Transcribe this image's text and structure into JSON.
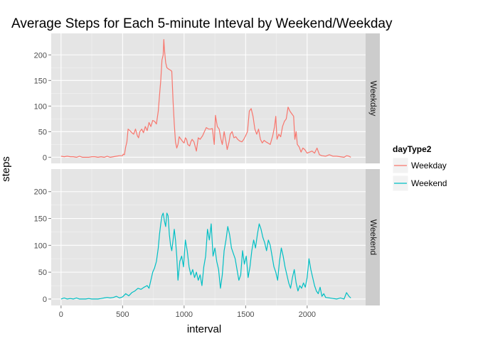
{
  "chart_data": {
    "type": "line",
    "title": "Average Steps for Each 5-minute Inteval by Weekend/Weekday",
    "xlabel": "interval",
    "ylabel": "steps",
    "xlim": [
      -80,
      2475
    ],
    "ylim": [
      -12,
      242
    ],
    "x_ticks": [
      0,
      500,
      1000,
      1500,
      2000
    ],
    "y_ticks": [
      0,
      50,
      100,
      150,
      200
    ],
    "grid": true,
    "legend": {
      "title": "dayType2",
      "position": "right"
    },
    "facets": [
      "Weekday",
      "Weekend"
    ],
    "series": [
      {
        "name": "Weekday",
        "color": "#F8766D",
        "points": [
          [
            0,
            2
          ],
          [
            25,
            1
          ],
          [
            50,
            2
          ],
          [
            75,
            1
          ],
          [
            100,
            1
          ],
          [
            125,
            0
          ],
          [
            150,
            2
          ],
          [
            175,
            0
          ],
          [
            200,
            0
          ],
          [
            225,
            0
          ],
          [
            250,
            1
          ],
          [
            275,
            1
          ],
          [
            300,
            0
          ],
          [
            325,
            1
          ],
          [
            350,
            0
          ],
          [
            375,
            2
          ],
          [
            400,
            0
          ],
          [
            425,
            1
          ],
          [
            450,
            2
          ],
          [
            475,
            3
          ],
          [
            500,
            3
          ],
          [
            505,
            6
          ],
          [
            515,
            5
          ],
          [
            525,
            20
          ],
          [
            535,
            30
          ],
          [
            545,
            55
          ],
          [
            560,
            52
          ],
          [
            575,
            48
          ],
          [
            590,
            45
          ],
          [
            605,
            55
          ],
          [
            620,
            42
          ],
          [
            630,
            38
          ],
          [
            640,
            50
          ],
          [
            655,
            55
          ],
          [
            670,
            48
          ],
          [
            685,
            60
          ],
          [
            700,
            52
          ],
          [
            715,
            68
          ],
          [
            730,
            60
          ],
          [
            745,
            72
          ],
          [
            760,
            70
          ],
          [
            775,
            65
          ],
          [
            790,
            90
          ],
          [
            800,
            120
          ],
          [
            810,
            150
          ],
          [
            820,
            190
          ],
          [
            830,
            200
          ],
          [
            835,
            230
          ],
          [
            840,
            210
          ],
          [
            850,
            185
          ],
          [
            860,
            175
          ],
          [
            875,
            172
          ],
          [
            890,
            170
          ],
          [
            900,
            168
          ],
          [
            910,
            110
          ],
          [
            920,
            65
          ],
          [
            930,
            30
          ],
          [
            940,
            18
          ],
          [
            950,
            25
          ],
          [
            960,
            40
          ],
          [
            975,
            35
          ],
          [
            990,
            30
          ],
          [
            1000,
            28
          ],
          [
            1010,
            38
          ],
          [
            1020,
            35
          ],
          [
            1030,
            25
          ],
          [
            1045,
            22
          ],
          [
            1055,
            30
          ],
          [
            1065,
            35
          ],
          [
            1080,
            30
          ],
          [
            1100,
            12
          ],
          [
            1115,
            38
          ],
          [
            1130,
            35
          ],
          [
            1150,
            42
          ],
          [
            1165,
            50
          ],
          [
            1180,
            58
          ],
          [
            1200,
            55
          ],
          [
            1215,
            55
          ],
          [
            1230,
            56
          ],
          [
            1245,
            25
          ],
          [
            1255,
            82
          ],
          [
            1270,
            60
          ],
          [
            1285,
            55
          ],
          [
            1300,
            35
          ],
          [
            1310,
            25
          ],
          [
            1325,
            50
          ],
          [
            1340,
            30
          ],
          [
            1350,
            15
          ],
          [
            1365,
            30
          ],
          [
            1375,
            45
          ],
          [
            1390,
            50
          ],
          [
            1405,
            38
          ],
          [
            1420,
            40
          ],
          [
            1435,
            35
          ],
          [
            1450,
            32
          ],
          [
            1470,
            30
          ],
          [
            1485,
            35
          ],
          [
            1500,
            42
          ],
          [
            1515,
            50
          ],
          [
            1530,
            90
          ],
          [
            1545,
            95
          ],
          [
            1560,
            80
          ],
          [
            1575,
            55
          ],
          [
            1590,
            45
          ],
          [
            1605,
            55
          ],
          [
            1620,
            35
          ],
          [
            1635,
            28
          ],
          [
            1650,
            33
          ],
          [
            1665,
            30
          ],
          [
            1680,
            28
          ],
          [
            1700,
            25
          ],
          [
            1720,
            42
          ],
          [
            1735,
            60
          ],
          [
            1745,
            80
          ],
          [
            1755,
            35
          ],
          [
            1770,
            45
          ],
          [
            1785,
            40
          ],
          [
            1800,
            60
          ],
          [
            1815,
            70
          ],
          [
            1830,
            75
          ],
          [
            1845,
            98
          ],
          [
            1860,
            90
          ],
          [
            1875,
            85
          ],
          [
            1890,
            80
          ],
          [
            1900,
            35
          ],
          [
            1910,
            50
          ],
          [
            1920,
            25
          ],
          [
            1935,
            20
          ],
          [
            1950,
            10
          ],
          [
            1965,
            18
          ],
          [
            1980,
            15
          ],
          [
            2000,
            8
          ],
          [
            2020,
            10
          ],
          [
            2040,
            12
          ],
          [
            2060,
            8
          ],
          [
            2080,
            18
          ],
          [
            2100,
            5
          ],
          [
            2120,
            3
          ],
          [
            2150,
            2
          ],
          [
            2180,
            5
          ],
          [
            2210,
            2
          ],
          [
            2240,
            2
          ],
          [
            2270,
            1
          ],
          [
            2300,
            0
          ],
          [
            2320,
            3
          ],
          [
            2340,
            2
          ],
          [
            2355,
            0
          ]
        ]
      },
      {
        "name": "Weekend",
        "color": "#00BFC4",
        "points": [
          [
            0,
            0
          ],
          [
            25,
            2
          ],
          [
            50,
            0
          ],
          [
            75,
            1
          ],
          [
            100,
            0
          ],
          [
            125,
            2
          ],
          [
            150,
            0
          ],
          [
            175,
            0
          ],
          [
            200,
            0
          ],
          [
            225,
            1
          ],
          [
            250,
            0
          ],
          [
            275,
            0
          ],
          [
            300,
            0
          ],
          [
            325,
            1
          ],
          [
            350,
            2
          ],
          [
            375,
            3
          ],
          [
            400,
            2
          ],
          [
            425,
            3
          ],
          [
            450,
            5
          ],
          [
            475,
            2
          ],
          [
            500,
            4
          ],
          [
            525,
            10
          ],
          [
            550,
            6
          ],
          [
            575,
            12
          ],
          [
            600,
            15
          ],
          [
            625,
            20
          ],
          [
            650,
            18
          ],
          [
            675,
            22
          ],
          [
            700,
            25
          ],
          [
            715,
            20
          ],
          [
            730,
            35
          ],
          [
            745,
            50
          ],
          [
            760,
            58
          ],
          [
            775,
            70
          ],
          [
            790,
            95
          ],
          [
            800,
            120
          ],
          [
            810,
            140
          ],
          [
            820,
            155
          ],
          [
            830,
            160
          ],
          [
            840,
            145
          ],
          [
            850,
            135
          ],
          [
            860,
            160
          ],
          [
            870,
            155
          ],
          [
            880,
            120
          ],
          [
            890,
            100
          ],
          [
            900,
            90
          ],
          [
            910,
            110
          ],
          [
            920,
            130
          ],
          [
            930,
            110
          ],
          [
            940,
            80
          ],
          [
            950,
            35
          ],
          [
            965,
            70
          ],
          [
            980,
            80
          ],
          [
            995,
            60
          ],
          [
            1010,
            110
          ],
          [
            1025,
            90
          ],
          [
            1040,
            60
          ],
          [
            1055,
            45
          ],
          [
            1070,
            55
          ],
          [
            1085,
            40
          ],
          [
            1100,
            50
          ],
          [
            1115,
            35
          ],
          [
            1130,
            45
          ],
          [
            1145,
            25
          ],
          [
            1160,
            60
          ],
          [
            1175,
            80
          ],
          [
            1190,
            130
          ],
          [
            1205,
            110
          ],
          [
            1220,
            140
          ],
          [
            1235,
            80
          ],
          [
            1250,
            95
          ],
          [
            1265,
            70
          ],
          [
            1280,
            55
          ],
          [
            1295,
            20
          ],
          [
            1310,
            45
          ],
          [
            1325,
            90
          ],
          [
            1340,
            110
          ],
          [
            1355,
            135
          ],
          [
            1370,
            120
          ],
          [
            1385,
            95
          ],
          [
            1400,
            85
          ],
          [
            1415,
            75
          ],
          [
            1430,
            55
          ],
          [
            1445,
            35
          ],
          [
            1460,
            45
          ],
          [
            1475,
            90
          ],
          [
            1490,
            65
          ],
          [
            1505,
            80
          ],
          [
            1520,
            40
          ],
          [
            1535,
            60
          ],
          [
            1550,
            90
          ],
          [
            1565,
            110
          ],
          [
            1580,
            95
          ],
          [
            1595,
            120
          ],
          [
            1610,
            140
          ],
          [
            1625,
            130
          ],
          [
            1640,
            115
          ],
          [
            1655,
            105
          ],
          [
            1670,
            90
          ],
          [
            1685,
            110
          ],
          [
            1700,
            100
          ],
          [
            1715,
            80
          ],
          [
            1730,
            60
          ],
          [
            1745,
            50
          ],
          [
            1760,
            35
          ],
          [
            1775,
            70
          ],
          [
            1790,
            95
          ],
          [
            1805,
            80
          ],
          [
            1820,
            60
          ],
          [
            1835,
            45
          ],
          [
            1850,
            30
          ],
          [
            1865,
            20
          ],
          [
            1880,
            40
          ],
          [
            1895,
            55
          ],
          [
            1910,
            30
          ],
          [
            1925,
            15
          ],
          [
            1940,
            25
          ],
          [
            1955,
            20
          ],
          [
            1970,
            30
          ],
          [
            1985,
            22
          ],
          [
            2000,
            40
          ],
          [
            2015,
            75
          ],
          [
            2030,
            55
          ],
          [
            2045,
            40
          ],
          [
            2060,
            25
          ],
          [
            2075,
            15
          ],
          [
            2090,
            10
          ],
          [
            2105,
            22
          ],
          [
            2120,
            5
          ],
          [
            2135,
            10
          ],
          [
            2150,
            3
          ],
          [
            2180,
            2
          ],
          [
            2210,
            1
          ],
          [
            2240,
            0
          ],
          [
            2270,
            2
          ],
          [
            2300,
            0
          ],
          [
            2320,
            12
          ],
          [
            2340,
            5
          ],
          [
            2355,
            2
          ]
        ]
      }
    ]
  }
}
